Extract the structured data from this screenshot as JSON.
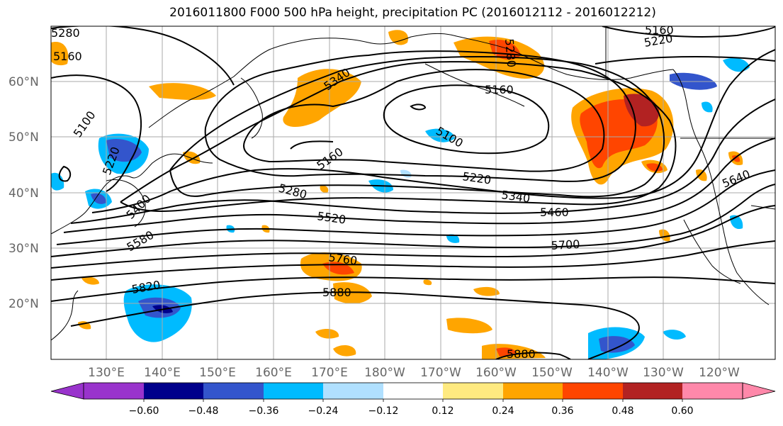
{
  "title": "2016011800 F000 500 hPa height, precipitation PC (2016012112 - 2016012212)",
  "lat_labels": [
    "60°N",
    "50°N",
    "40°N",
    "30°N",
    "20°N"
  ],
  "lon_labels": [
    "130°E",
    "140°E",
    "150°E",
    "160°E",
    "170°E",
    "180°W",
    "170°W",
    "160°W",
    "150°W",
    "140°W",
    "130°W",
    "120°W"
  ],
  "height_contour_labels": [
    "5280",
    "5160",
    "5100",
    "5220",
    "5340",
    "5280",
    "5160",
    "5100",
    "5220",
    "5160",
    "5280",
    "5400",
    "5340",
    "5520",
    "5460",
    "5580",
    "5700",
    "5640",
    "5760",
    "5820",
    "5880",
    "5880",
    "5160",
    "5220"
  ],
  "colorbar": {
    "labels": [
      "−0.60",
      "−0.48",
      "−0.36",
      "−0.24",
      "−0.12",
      "0.12",
      "0.24",
      "0.36",
      "0.48",
      "0.60"
    ],
    "colors": [
      "#9933cc",
      "#00008b",
      "#3355cc",
      "#00bbff",
      "#b0e0ff",
      "#ffffff",
      "#ffea80",
      "#ffa500",
      "#ff4500",
      "#b22222",
      "#ff88aa"
    ]
  },
  "map_extent": {
    "lon_min": 120,
    "lon_max": 250,
    "lat_min": 10,
    "lat_max": 70
  }
}
